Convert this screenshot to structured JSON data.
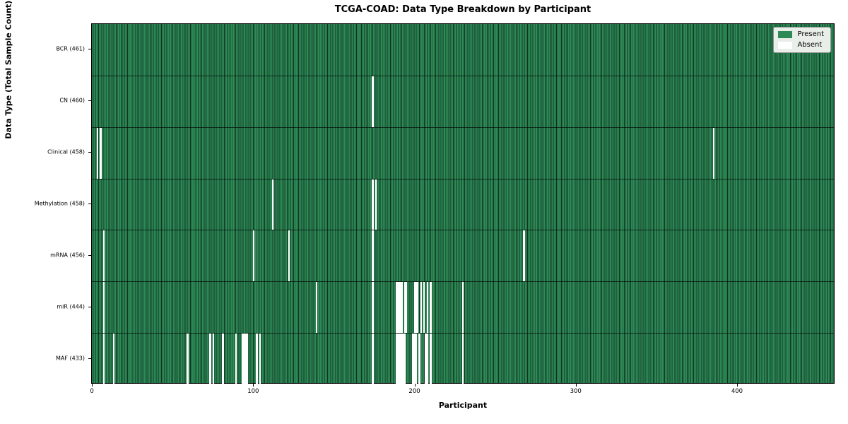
{
  "title": "TCGA-COAD: Data Type Breakdown by Participant",
  "chart_data": {
    "type": "heatmap",
    "title": "TCGA-COAD: Data Type Breakdown by Participant",
    "xlabel": "Participant",
    "ylabel": "Data Type (Total Sample Count)",
    "n_participants": 461,
    "x_ticks": [
      0,
      100,
      200,
      300,
      400
    ],
    "xlim": [
      -0.5,
      460.5
    ],
    "grid": false,
    "legend_position": "upper right",
    "legend": {
      "present_label": "Present",
      "absent_label": "Absent"
    },
    "colors": {
      "present": "#2e8b57",
      "absent": "#ffffff",
      "edge": "#0f3320",
      "row_separator": "rgba(0,0,0,0.65)"
    },
    "rows": [
      {
        "short": "bcr",
        "label": "BCR (461)",
        "count": 461,
        "absent": []
      },
      {
        "short": "cn",
        "label": "CN (460)",
        "count": 460,
        "absent": [
          174
        ]
      },
      {
        "short": "clinical",
        "label": "Clinical (458)",
        "count": 458,
        "absent": [
          3,
          5,
          386
        ]
      },
      {
        "short": "methylation",
        "label": "Methylation (458)",
        "count": 458,
        "absent": [
          112,
          174,
          176
        ]
      },
      {
        "short": "mrna",
        "label": "mRNA (456)",
        "count": 456,
        "absent": [
          7,
          100,
          122,
          174,
          268
        ]
      },
      {
        "short": "mir",
        "label": "miR (444)",
        "count": 444,
        "absent": [
          7,
          139,
          174,
          189,
          190,
          191,
          192,
          194,
          195,
          200,
          201,
          202,
          204,
          206,
          208,
          210,
          230
        ]
      },
      {
        "short": "maf",
        "label": "MAF (433)",
        "count": 433,
        "absent": [
          7,
          13,
          59,
          73,
          75,
          81,
          89,
          93,
          94,
          95,
          96,
          102,
          104,
          174,
          189,
          190,
          191,
          192,
          193,
          194,
          199,
          200,
          201,
          203,
          207,
          208,
          210,
          230
        ]
      }
    ]
  }
}
